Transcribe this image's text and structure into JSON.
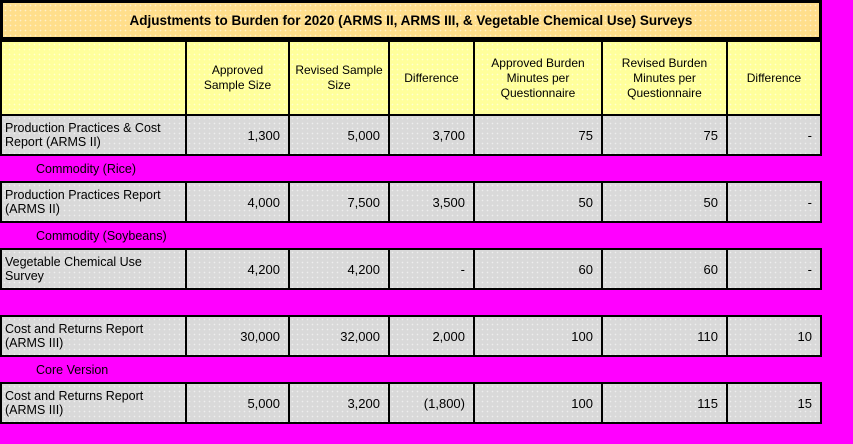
{
  "title": "Adjustments to Burden for 2020 (ARMS II, ARMS III, & Vegetable Chemical Use) Surveys",
  "colors": {
    "magenta": "#FF00FF",
    "title_bg": "#FFDE8B",
    "header_bg": "#FFFF9B",
    "cell_bg": "#D9D9D9",
    "border": "#000000"
  },
  "table": {
    "headers": [
      "",
      "Approved Sample Size",
      "Revised Sample Size",
      "Difference",
      "Approved Burden Minutes per Questionnaire",
      "Revised Burden Minutes per Questionnaire",
      "Difference"
    ],
    "rows": [
      {
        "type": "data",
        "label": "Production Practices & Cost Report (ARMS II)",
        "values": [
          "1,300",
          "5,000",
          "3,700",
          "75",
          "75",
          "-"
        ]
      },
      {
        "type": "separator",
        "label": "Commodity  (Rice)"
      },
      {
        "type": "data",
        "label": "Production Practices Report (ARMS II)",
        "values": [
          "4,000",
          "7,500",
          "3,500",
          "50",
          "50",
          "-"
        ]
      },
      {
        "type": "separator",
        "label": "Commodity  (Soybeans)"
      },
      {
        "type": "data",
        "label": "Vegetable Chemical Use Survey",
        "values": [
          "4,200",
          "4,200",
          "-",
          "60",
          "60",
          "-"
        ]
      },
      {
        "type": "separator",
        "label": ""
      },
      {
        "type": "data",
        "label": "Cost and Returns Report (ARMS III)",
        "values": [
          "30,000",
          "32,000",
          "2,000",
          "100",
          "110",
          "10"
        ]
      },
      {
        "type": "separator",
        "label": "Core Version"
      },
      {
        "type": "data",
        "label": "Cost and Returns Report (ARMS III)",
        "values": [
          "5,000",
          "3,200",
          "(1,800)",
          "100",
          "115",
          "15"
        ]
      }
    ]
  }
}
